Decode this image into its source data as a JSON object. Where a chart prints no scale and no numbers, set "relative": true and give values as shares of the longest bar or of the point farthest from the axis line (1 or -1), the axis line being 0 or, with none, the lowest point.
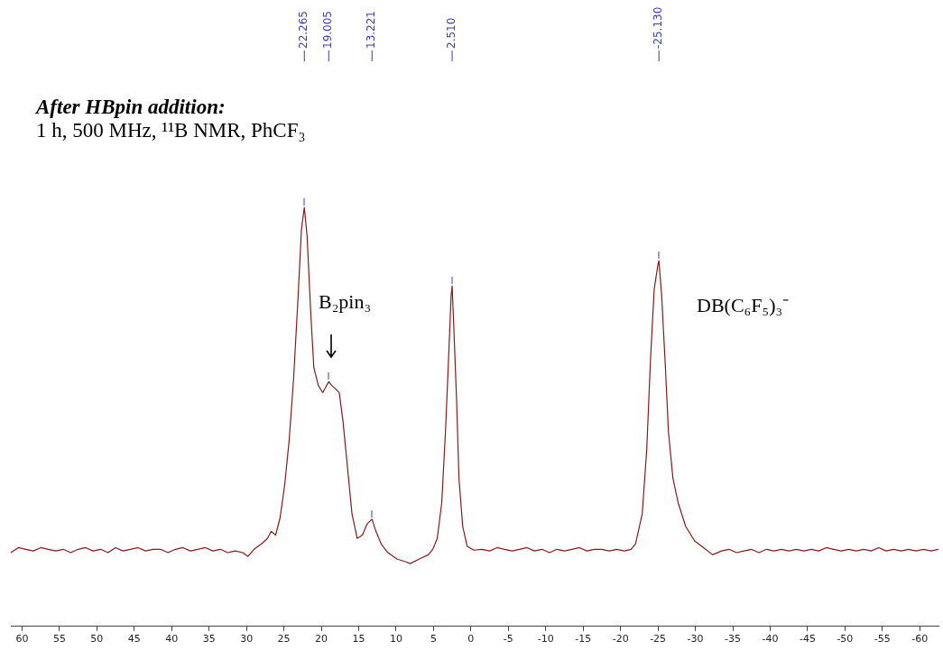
{
  "chart_data": {
    "type": "line",
    "title": "After HBpin addition:",
    "subtitle": "1 h, 500 MHz, ¹¹B NMR, PhCF₃",
    "relative": true,
    "tick_labels": "x",
    "color": "#8b1a1a",
    "marker": "none",
    "grid": false,
    "legend": false,
    "xlim": [
      61.5,
      -62.5
    ],
    "xticks": [
      60,
      55,
      50,
      45,
      40,
      35,
      30,
      25,
      20,
      15,
      10,
      5,
      0,
      -5,
      -10,
      -15,
      -20,
      -25,
      -30,
      -35,
      -40,
      -45,
      -50,
      -55,
      -60
    ],
    "x": [
      61.5,
      60.5,
      59.5,
      58.5,
      57.5,
      56.5,
      55.5,
      54.5,
      53.5,
      52.5,
      51.5,
      50.5,
      49.5,
      48.5,
      47.5,
      46.5,
      45.5,
      44.5,
      43.5,
      42.5,
      41.5,
      40.5,
      39.5,
      38.5,
      37.5,
      36.5,
      35.5,
      34.5,
      33.5,
      32.5,
      31.5,
      30.5,
      29.8,
      29,
      28,
      27.2,
      26.7,
      26.1,
      25.5,
      24.9,
      24.3,
      23.7,
      23.1,
      22.65,
      22.265,
      21.9,
      21.4,
      21.0,
      20.4,
      19.8,
      19.3,
      19.005,
      18.6,
      18.1,
      17.6,
      17.1,
      16.5,
      15.9,
      15.2,
      14.5,
      13.9,
      13.221,
      12.7,
      12.0,
      11.1,
      9.9,
      8.7,
      8.1,
      6.9,
      5.7,
      5.1,
      4.5,
      3.9,
      3.4,
      3.0,
      2.65,
      2.51,
      2.3,
      1.9,
      1.6,
      1.1,
      0.5,
      -0.4,
      -1.5,
      -2.5,
      -3.5,
      -4.5,
      -5.5,
      -6.5,
      -7.5,
      -8.5,
      -9.5,
      -10.5,
      -11.5,
      -12.5,
      -13.5,
      -14.5,
      -15.5,
      -16.5,
      -17.5,
      -18.5,
      -19.5,
      -20.5,
      -21.4,
      -22,
      -22.9,
      -23.5,
      -24.0,
      -24.5,
      -25.0,
      -25.13,
      -25.5,
      -26.0,
      -26.4,
      -27.0,
      -27.7,
      -28.7,
      -29.9,
      -31.1,
      -32.3,
      -33.5,
      -34.5,
      -35.5,
      -36.5,
      -37.5,
      -38.5,
      -39.5,
      -40.5,
      -41.5,
      -42.5,
      -43.5,
      -44.5,
      -45.5,
      -46.5,
      -47.5,
      -48.5,
      -49.5,
      -50.5,
      -51.5,
      -52.5,
      -53.5,
      -54.5,
      -55.5,
      -56.5,
      -57.5,
      -58.5,
      -59.5,
      -60.5,
      -61.5,
      -62.5
    ],
    "values": [
      0.176,
      0.188,
      0.184,
      0.18,
      0.188,
      0.184,
      0.18,
      0.184,
      0.176,
      0.184,
      0.188,
      0.18,
      0.184,
      0.176,
      0.188,
      0.18,
      0.184,
      0.188,
      0.18,
      0.184,
      0.184,
      0.176,
      0.184,
      0.188,
      0.18,
      0.184,
      0.188,
      0.18,
      0.184,
      0.176,
      0.18,
      0.176,
      0.167,
      0.184,
      0.197,
      0.21,
      0.227,
      0.218,
      0.26,
      0.337,
      0.443,
      0.592,
      0.788,
      0.949,
      1.0,
      0.932,
      0.745,
      0.618,
      0.575,
      0.558,
      0.575,
      0.584,
      0.575,
      0.567,
      0.558,
      0.49,
      0.38,
      0.269,
      0.21,
      0.218,
      0.244,
      0.256,
      0.227,
      0.197,
      0.176,
      0.161,
      0.154,
      0.15,
      0.161,
      0.171,
      0.184,
      0.21,
      0.295,
      0.465,
      0.635,
      0.788,
      0.813,
      0.72,
      0.533,
      0.354,
      0.239,
      0.191,
      0.182,
      0.184,
      0.18,
      0.188,
      0.184,
      0.18,
      0.184,
      0.188,
      0.18,
      0.184,
      0.176,
      0.184,
      0.18,
      0.184,
      0.188,
      0.18,
      0.184,
      0.184,
      0.18,
      0.184,
      0.18,
      0.184,
      0.197,
      0.269,
      0.422,
      0.635,
      0.805,
      0.864,
      0.873,
      0.788,
      0.618,
      0.465,
      0.354,
      0.295,
      0.239,
      0.204,
      0.188,
      0.171,
      0.18,
      0.184,
      0.176,
      0.18,
      0.184,
      0.176,
      0.184,
      0.18,
      0.184,
      0.18,
      0.184,
      0.18,
      0.184,
      0.18,
      0.188,
      0.184,
      0.18,
      0.184,
      0.18,
      0.184,
      0.18,
      0.188,
      0.18,
      0.184,
      0.18,
      0.184,
      0.18,
      0.184,
      0.18,
      0.184
    ],
    "annotations": [
      {
        "text": "22.265",
        "x": 22.265
      },
      {
        "text": "19.005",
        "x": 19.005
      },
      {
        "text": "13.221",
        "x": 13.221
      },
      {
        "text": "2.510",
        "x": 2.51
      },
      {
        "text": "-25.130",
        "x": -25.13
      },
      "B₂pin₃",
      "DB(C₆F₅)₃⁻"
    ]
  }
}
